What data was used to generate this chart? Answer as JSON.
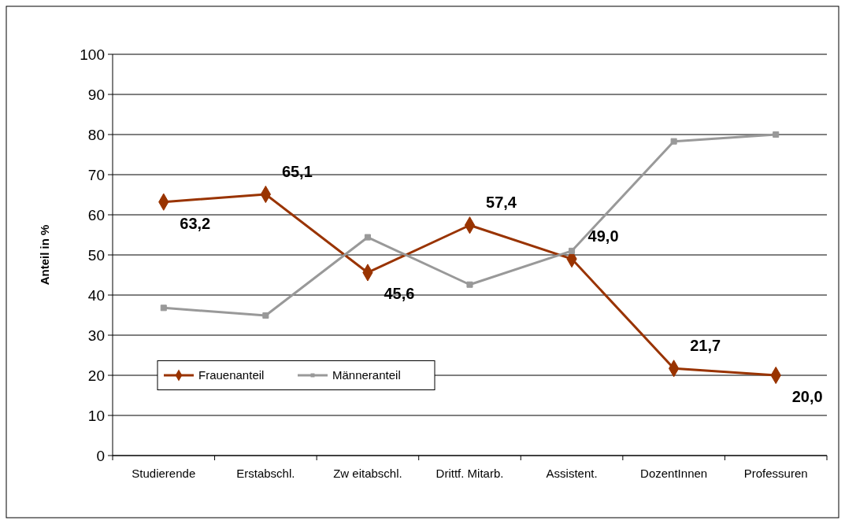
{
  "chart_data": {
    "type": "line",
    "ylabel": "Anteil in %",
    "categories": [
      "Studierende",
      "Erstabschl.",
      "Zw eitabschl.",
      "Drittf. Mitarb.",
      "Assistent.",
      "DozentInnen",
      "Professuren"
    ],
    "series": [
      {
        "name": "Frauenanteil",
        "color": "#993300",
        "marker": "diamond",
        "values": [
          63.2,
          65.1,
          45.6,
          57.4,
          49.0,
          21.7,
          20.0
        ],
        "value_labels": [
          "63,2",
          "65,1",
          "45,6",
          "57,4",
          "49,0",
          "21,7",
          "20,0"
        ]
      },
      {
        "name": "Männeranteil",
        "color": "#999999",
        "marker": "square",
        "values": [
          36.8,
          34.9,
          54.4,
          42.6,
          51.0,
          78.3,
          80.0
        ]
      }
    ],
    "ylim": [
      0,
      100
    ],
    "yticks": [
      0,
      10,
      20,
      30,
      40,
      50,
      60,
      70,
      80,
      90,
      100
    ],
    "grid": "y",
    "legend": "bottom left"
  }
}
